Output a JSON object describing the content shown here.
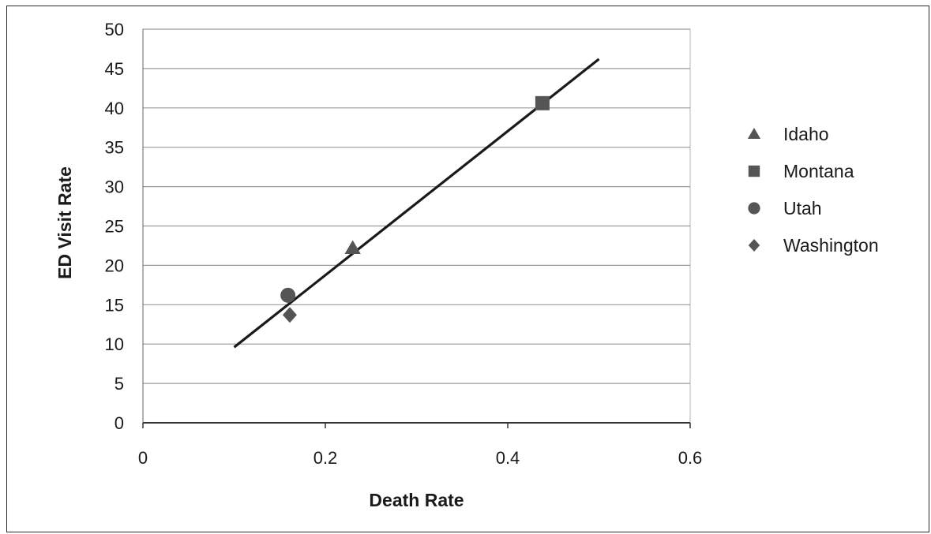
{
  "chart_data": {
    "type": "scatter",
    "xlabel": "Death Rate",
    "ylabel": "ED Visit Rate",
    "xlim": [
      0,
      0.6
    ],
    "ylim": [
      0,
      50
    ],
    "xticks": [
      0,
      0.2,
      0.4,
      0.6
    ],
    "xtick_labels": [
      "0",
      "0.2",
      "0.4",
      "0.6"
    ],
    "yticks": [
      0,
      5,
      10,
      15,
      20,
      25,
      30,
      35,
      40,
      45,
      50
    ],
    "ytick_labels": [
      "0",
      "5",
      "10",
      "15",
      "20",
      "25",
      "30",
      "35",
      "40",
      "45",
      "50"
    ],
    "grid": "horizontal",
    "legend_position": "right",
    "series": [
      {
        "name": "Idaho",
        "marker": "triangle",
        "x": 0.23,
        "y": 22.2
      },
      {
        "name": "Montana",
        "marker": "square",
        "x": 0.438,
        "y": 40.6
      },
      {
        "name": "Utah",
        "marker": "circle",
        "x": 0.159,
        "y": 16.2
      },
      {
        "name": "Washington",
        "marker": "diamond",
        "x": 0.161,
        "y": 13.7
      }
    ],
    "trendline": {
      "x": [
        0.1,
        0.5
      ],
      "y": [
        9.6,
        46.2
      ]
    },
    "colors": {
      "marker": "#555555",
      "line": "#1a1a1a",
      "grid": "#9a9a9a"
    }
  }
}
